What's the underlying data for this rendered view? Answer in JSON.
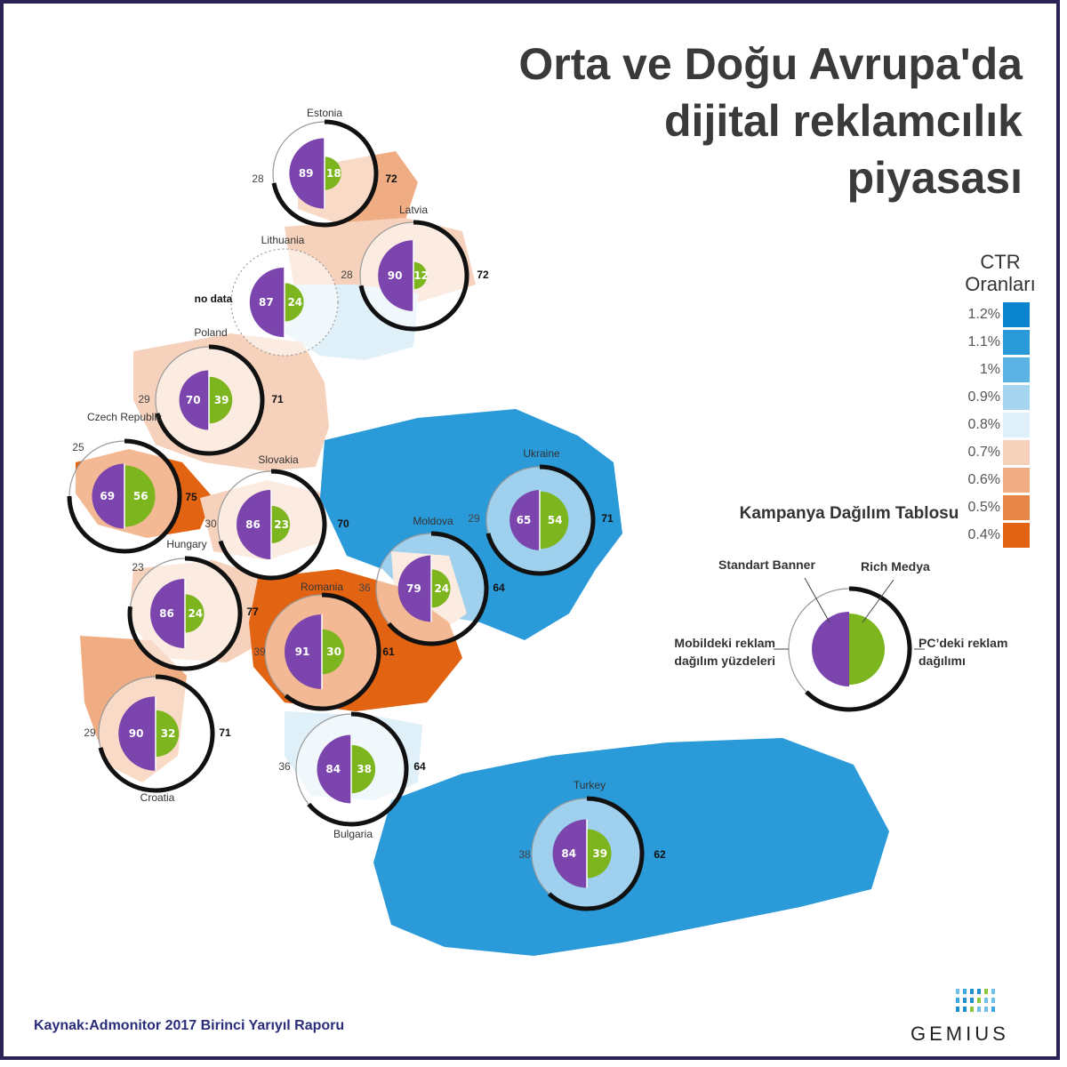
{
  "title": "Orta ve Doğu Avrupa'da dijital reklamcılık piyasası",
  "legend": {
    "title": "CTR Oranları",
    "items": [
      {
        "label": "1.2%",
        "color": "#0b84cf"
      },
      {
        "label": "1.1%",
        "color": "#2a9ad9"
      },
      {
        "label": "1%",
        "color": "#5ab3e3"
      },
      {
        "label": "0.9%",
        "color": "#a6d6ef"
      },
      {
        "label": "0.8%",
        "color": "#dff0f9"
      },
      {
        "label": "0.7%",
        "color": "#f6d2bd"
      },
      {
        "label": "0.6%",
        "color": "#f0ad84"
      },
      {
        "label": "0.5%",
        "color": "#e8864a"
      },
      {
        "label": "0.4%",
        "color": "#e26412"
      }
    ]
  },
  "colors": {
    "standard_banner": "#7b45ad",
    "rich_media": "#7cb51d",
    "ring": "#111111"
  },
  "countries": [
    {
      "name": "Estonia",
      "banner": "89",
      "rich": "18",
      "mobile": "28",
      "pc": "72",
      "ctr": "0.6%"
    },
    {
      "name": "Latvia",
      "banner": "90",
      "rich": "12",
      "mobile": "28",
      "pc": "72",
      "ctr": "0.7%"
    },
    {
      "name": "Lithuania",
      "banner": "87",
      "rich": "24",
      "mobile": "no data",
      "pc": "",
      "ctr": "0.8%"
    },
    {
      "name": "Poland",
      "banner": "70",
      "rich": "39",
      "mobile": "29",
      "pc": "71",
      "ctr": "0.7%"
    },
    {
      "name": "Czech Republic",
      "banner": "69",
      "rich": "56",
      "mobile": "25",
      "pc": "75",
      "ctr": "0.4%"
    },
    {
      "name": "Slovakia",
      "banner": "86",
      "rich": "23",
      "mobile": "30",
      "pc": "70",
      "ctr": "0.7%"
    },
    {
      "name": "Ukraine",
      "banner": "65",
      "rich": "54",
      "mobile": "29",
      "pc": "71",
      "ctr": "1.1%"
    },
    {
      "name": "Moldova",
      "banner": "79",
      "rich": "24",
      "mobile": "36",
      "pc": "64",
      "ctr": "0.7%"
    },
    {
      "name": "Hungary",
      "banner": "86",
      "rich": "24",
      "mobile": "23",
      "pc": "77",
      "ctr": "0.7%"
    },
    {
      "name": "Romania",
      "banner": "91",
      "rich": "30",
      "mobile": "39",
      "pc": "61",
      "ctr": "0.4%"
    },
    {
      "name": "Croatia",
      "banner": "90",
      "rich": "32",
      "mobile": "29",
      "pc": "71",
      "ctr": "0.6%"
    },
    {
      "name": "Bulgaria",
      "banner": "84",
      "rich": "38",
      "mobile": "36",
      "pc": "64",
      "ctr": "0.9%"
    },
    {
      "name": "Turkey",
      "banner": "84",
      "rich": "39",
      "mobile": "38",
      "pc": "62",
      "ctr": "1.1%"
    }
  ],
  "key": {
    "title": "Kampanya Dağılım Tablosu",
    "standard_banner": "Standart Banner",
    "rich_media": "Rich Medya",
    "mobile": "Mobildeki reklam dağılım yüzdeleri",
    "pc": "PC’deki reklam dağılımı"
  },
  "source": "Kaynak:Admonitor 2017 Birinci Yarıyıl Raporu",
  "brand": "GEMIUS"
}
